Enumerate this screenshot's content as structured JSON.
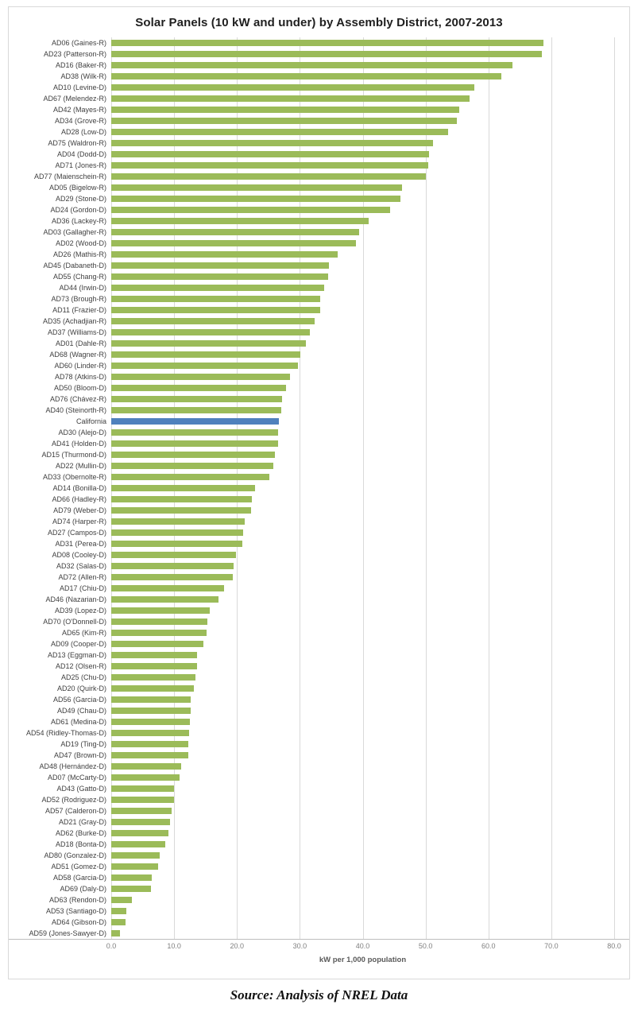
{
  "title": "Solar Panels (10 kW and under) by Assembly District, 2007-2013",
  "source_note": "Source:  Analysis of NREL Data",
  "colors": {
    "bar_default": "#9BBB59",
    "bar_highlight": "#4F81BD",
    "gridline": "#D9D9D9",
    "axis_line": "#BFBFBF",
    "tick_text": "#7F7F7F",
    "label_text": "#3F3F3F"
  },
  "chart_data": {
    "type": "bar",
    "orientation": "horizontal",
    "title": "Solar Panels (10 kW and under) by Assembly District, 2007-2013",
    "xlabel": "kW per 1,000 population",
    "ylabel": "",
    "xlim": [
      0,
      80
    ],
    "xticks": [
      0,
      10,
      20,
      30,
      40,
      50,
      60,
      70,
      80
    ],
    "xtick_labels": [
      "0.0",
      "10.0",
      "20.0",
      "30.0",
      "40.0",
      "50.0",
      "60.0",
      "70.0",
      "80.0"
    ],
    "grid": "vertical-major",
    "legend": "none",
    "highlight_category": "California",
    "categories": [
      "AD06 (Gaines-R)",
      "AD23 (Patterson-R)",
      "AD16 (Baker-R)",
      "AD38 (Wilk-R)",
      "AD10 (Levine-D)",
      "AD67 (Melendez-R)",
      "AD42 (Mayes-R)",
      "AD34 (Grove-R)",
      "AD28 (Low-D)",
      "AD75 (Waldron-R)",
      "AD04 (Dodd-D)",
      "AD71 (Jones-R)",
      "AD77 (Maienschein-R)",
      "AD05 (Bigelow-R)",
      "AD29 (Stone-D)",
      "AD24 (Gordon-D)",
      "AD36 (Lackey-R)",
      "AD03 (Gallagher-R)",
      "AD02 (Wood-D)",
      "AD26 (Mathis-R)",
      "AD45 (Dabaneth-D)",
      "AD55 (Chang-R)",
      "AD44 (Irwin-D)",
      "AD73 (Brough-R)",
      "AD11 (Frazier-D)",
      "AD35 (Achadjian-R)",
      "AD37 (Williams-D)",
      "AD01 (Dahle-R)",
      "AD68 (Wagner-R)",
      "AD60 (Linder-R)",
      "AD78 (Atkins-D)",
      "AD50 (Bloom-D)",
      "AD76 (Chávez-R)",
      "AD40 (Steinorth-R)",
      "California",
      "AD30 (Alejo-D)",
      "AD41 (Holden-D)",
      "AD15 (Thurmond-D)",
      "AD22 (Mullin-D)",
      "AD33 (Obernolte-R)",
      "AD14 (Bonilla-D)",
      "AD66 (Hadley-R)",
      "AD79 (Weber-D)",
      "AD74 (Harper-R)",
      "AD27 (Campos-D)",
      "AD31 (Perea-D)",
      "AD08 (Cooley-D)",
      "AD32 (Salas-D)",
      "AD72 (Allen-R)",
      "AD17 (Chiu-D)",
      "AD46 (Nazarian-D)",
      "AD39 (Lopez-D)",
      "AD70 (O'Donnell-D)",
      "AD65 (Kim-R)",
      "AD09 (Cooper-D)",
      "AD13 (Eggman-D)",
      "AD12 (Olsen-R)",
      "AD25 (Chu-D)",
      "AD20 (Quirk-D)",
      "AD56 (Garcia-D)",
      "AD49 (Chau-D)",
      "AD61 (Medina-D)",
      "AD54 (Ridley-Thomas-D)",
      "AD19 (Ting-D)",
      "AD47 (Brown-D)",
      "AD48 (Hernández-D)",
      "AD07 (McCarty-D)",
      "AD43 (Gatto-D)",
      "AD52 (Rodriguez-D)",
      "AD57 (Calderon-D)",
      "AD21 (Gray-D)",
      "AD62 (Burke-D)",
      "AD18 (Bonta-D)",
      "AD80 (Gonzalez-D)",
      "AD51 (Gomez-D)",
      "AD58 (Garcia-D)",
      "AD69 (Daly-D)",
      "AD63 (Rendon-D)",
      "AD53 (Santiago-D)",
      "AD64 (Gibson-D)",
      "AD59 (Jones-Sawyer-D)"
    ],
    "values": [
      68.8,
      68.5,
      63.8,
      62.0,
      57.8,
      57.0,
      55.4,
      55.0,
      53.6,
      51.2,
      50.6,
      50.4,
      50.1,
      46.2,
      46.0,
      44.4,
      41.0,
      39.4,
      38.9,
      36.0,
      34.6,
      34.5,
      33.9,
      33.3,
      33.2,
      32.3,
      31.6,
      31.0,
      30.1,
      29.7,
      28.4,
      27.8,
      27.2,
      27.1,
      26.7,
      26.6,
      26.5,
      26.0,
      25.8,
      25.1,
      22.9,
      22.4,
      22.2,
      21.2,
      21.0,
      20.9,
      19.9,
      19.5,
      19.3,
      17.9,
      17.1,
      15.7,
      15.3,
      15.2,
      14.6,
      13.7,
      13.6,
      13.4,
      13.1,
      12.7,
      12.6,
      12.5,
      12.4,
      12.3,
      12.2,
      11.1,
      10.9,
      10.0,
      10.0,
      9.6,
      9.4,
      9.1,
      8.6,
      7.7,
      7.5,
      6.5,
      6.3,
      3.3,
      2.4,
      2.3,
      1.4
    ]
  }
}
